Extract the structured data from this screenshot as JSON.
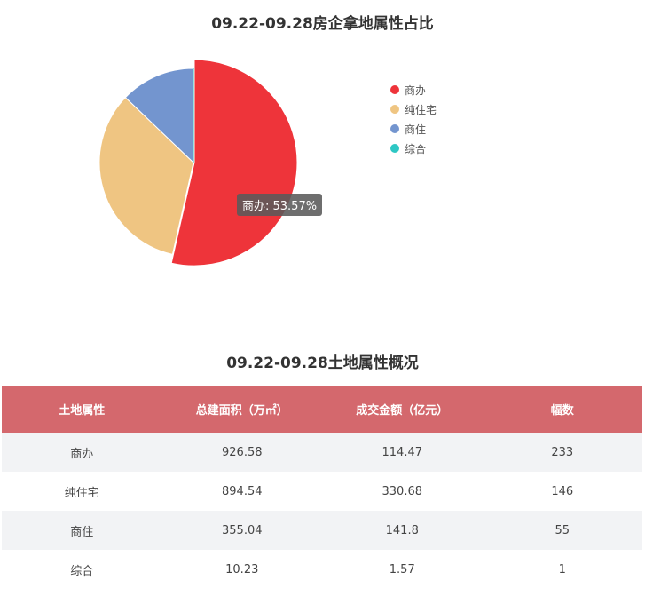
{
  "chart_title": "09.22-09.28房企拿地属性占比",
  "chart_data": {
    "type": "pie",
    "title": "09.22-09.28房企拿地属性占比",
    "categories": [
      "商办",
      "纯住宅",
      "商住",
      "综合"
    ],
    "values": [
      53.57,
      33.57,
      12.86,
      0.0
    ],
    "colors": [
      "#ee343a",
      "#efc582",
      "#7395cf",
      "#2ec7c4"
    ],
    "legend_position": "right",
    "highlighted": "商办",
    "tooltip": "商办: 53.57%"
  },
  "table": {
    "title": "09.22-09.28土地属性概况",
    "header_color": "#d4686d",
    "columns": [
      "土地属性",
      "总建面积（万㎡）",
      "成交金额（亿元）",
      "幅数"
    ],
    "rows": [
      [
        "商办",
        "926.58",
        "114.47",
        "233"
      ],
      [
        "纯住宅",
        "894.54",
        "330.68",
        "146"
      ],
      [
        "商住",
        "355.04",
        "141.8",
        "55"
      ],
      [
        "综合",
        "10.23",
        "1.57",
        "1"
      ]
    ]
  }
}
